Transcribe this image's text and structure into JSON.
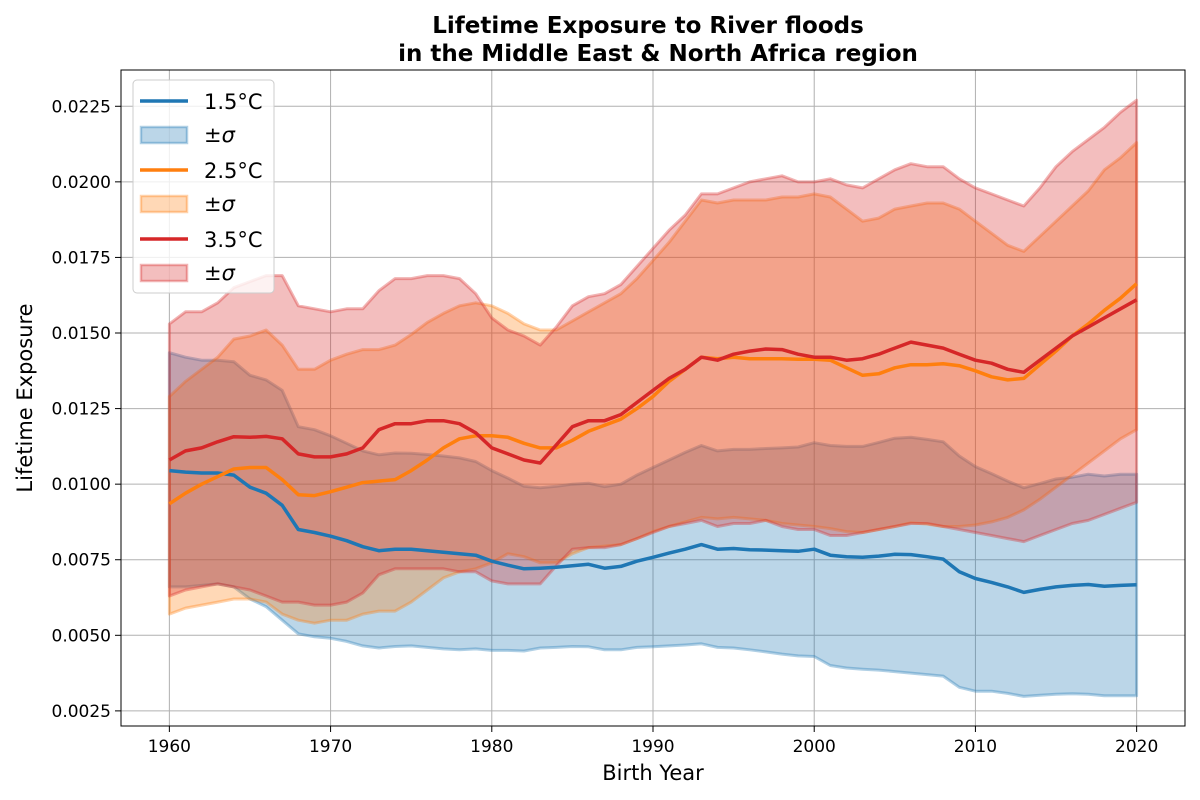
{
  "chart_data": {
    "type": "line",
    "title": "Lifetime Exposure to River floods",
    "subtitle": "in the Middle East & North Africa region",
    "xlabel": "Birth Year",
    "ylabel": "Lifetime Exposure",
    "xlim": [
      1957,
      2023
    ],
    "ylim": [
      0.002,
      0.0237
    ],
    "xticks": [
      1960,
      1970,
      1980,
      1990,
      2000,
      2010,
      2020
    ],
    "xtick_labels": [
      "1960",
      "1970",
      "1980",
      "1990",
      "2000",
      "2010",
      "2020"
    ],
    "yticks": [
      0.0025,
      0.005,
      0.0075,
      0.01,
      0.0125,
      0.015,
      0.0175,
      0.02,
      0.0225
    ],
    "ytick_labels": [
      "0.0025",
      "0.0050",
      "0.0075",
      "0.0100",
      "0.0125",
      "0.0150",
      "0.0175",
      "0.0200",
      "0.0225"
    ],
    "grid": true,
    "legend_position": "top-left",
    "x": [
      1960,
      1961,
      1962,
      1963,
      1964,
      1965,
      1966,
      1967,
      1968,
      1969,
      1970,
      1971,
      1972,
      1973,
      1974,
      1975,
      1976,
      1977,
      1978,
      1979,
      1980,
      1981,
      1982,
      1983,
      1984,
      1985,
      1986,
      1987,
      1988,
      1989,
      1990,
      1991,
      1992,
      1993,
      1994,
      1995,
      1996,
      1997,
      1998,
      1999,
      2000,
      2001,
      2002,
      2003,
      2004,
      2005,
      2006,
      2007,
      2008,
      2009,
      2010,
      2011,
      2012,
      2013,
      2014,
      2015,
      2016,
      2017,
      2018,
      2019,
      2020
    ],
    "series": [
      {
        "name": "1.5°C",
        "band_label": "±σ",
        "color": "#1f77b4",
        "mean": [
          0.01045,
          0.0104,
          0.01037,
          0.01037,
          0.0103,
          0.0099,
          0.0097,
          0.0093,
          0.0085,
          0.0084,
          0.00828,
          0.00813,
          0.00793,
          0.0078,
          0.00785,
          0.00785,
          0.0078,
          0.00775,
          0.0077,
          0.00765,
          0.00745,
          0.00732,
          0.0072,
          0.00722,
          0.00725,
          0.0073,
          0.00735,
          0.00722,
          0.00728,
          0.00745,
          0.00758,
          0.00772,
          0.00785,
          0.008,
          0.00785,
          0.00787,
          0.00783,
          0.00782,
          0.0078,
          0.00778,
          0.00785,
          0.00765,
          0.0076,
          0.00758,
          0.00762,
          0.00768,
          0.00767,
          0.0076,
          0.00752,
          0.0071,
          0.00688,
          0.00675,
          0.0066,
          0.00642,
          0.00652,
          0.0066,
          0.00665,
          0.00668,
          0.00662,
          0.00665,
          0.00667
        ],
        "lower": [
          0.0066,
          0.0066,
          0.00665,
          0.0067,
          0.0066,
          0.0062,
          0.00595,
          0.0055,
          0.00505,
          0.00495,
          0.0049,
          0.0048,
          0.00465,
          0.00458,
          0.00463,
          0.00465,
          0.0046,
          0.00455,
          0.00452,
          0.00455,
          0.0045,
          0.0045,
          0.00448,
          0.00458,
          0.0046,
          0.00463,
          0.00462,
          0.00452,
          0.00452,
          0.0046,
          0.00462,
          0.00465,
          0.00468,
          0.00472,
          0.0046,
          0.00458,
          0.00452,
          0.00445,
          0.00438,
          0.00432,
          0.0043,
          0.004,
          0.00392,
          0.00388,
          0.00385,
          0.0038,
          0.00375,
          0.0037,
          0.00365,
          0.00328,
          0.00315,
          0.00315,
          0.00308,
          0.00298,
          0.00302,
          0.00305,
          0.00307,
          0.00305,
          0.003,
          0.003,
          0.003
        ],
        "upper": [
          0.01435,
          0.0142,
          0.0141,
          0.0141,
          0.01405,
          0.0136,
          0.01345,
          0.0131,
          0.0119,
          0.0118,
          0.0116,
          0.01135,
          0.0111,
          0.01097,
          0.01103,
          0.01102,
          0.01098,
          0.01093,
          0.01087,
          0.01075,
          0.01045,
          0.0102,
          0.00993,
          0.00988,
          0.00993,
          0.01,
          0.01003,
          0.00992,
          0.01,
          0.0103,
          0.01055,
          0.0108,
          0.01105,
          0.01128,
          0.0111,
          0.01115,
          0.01115,
          0.01118,
          0.0112,
          0.01123,
          0.01137,
          0.01128,
          0.01125,
          0.01125,
          0.01138,
          0.01152,
          0.01155,
          0.01148,
          0.0114,
          0.01093,
          0.01058,
          0.01035,
          0.0101,
          0.00988,
          0.01002,
          0.01017,
          0.01023,
          0.01033,
          0.01027,
          0.01033,
          0.01033
        ]
      },
      {
        "name": "2.5°C",
        "band_label": "±σ",
        "color": "#ff7f0e",
        "mean": [
          0.00935,
          0.0097,
          0.01,
          0.01025,
          0.0105,
          0.01055,
          0.01055,
          0.01015,
          0.00965,
          0.00962,
          0.00975,
          0.0099,
          0.01005,
          0.0101,
          0.01015,
          0.01045,
          0.0108,
          0.0112,
          0.0115,
          0.0116,
          0.0116,
          0.01155,
          0.01135,
          0.0112,
          0.0112,
          0.01145,
          0.01175,
          0.01195,
          0.01215,
          0.0125,
          0.0129,
          0.0134,
          0.0138,
          0.0142,
          0.01415,
          0.0142,
          0.01415,
          0.01415,
          0.01415,
          0.01413,
          0.01413,
          0.0141,
          0.01385,
          0.0136,
          0.01365,
          0.01385,
          0.01395,
          0.01395,
          0.01398,
          0.01392,
          0.01375,
          0.01355,
          0.01345,
          0.0135,
          0.01395,
          0.0144,
          0.0149,
          0.0153,
          0.01575,
          0.01615,
          0.01663
        ],
        "lower": [
          0.0057,
          0.0059,
          0.006,
          0.0061,
          0.0062,
          0.0062,
          0.0061,
          0.0057,
          0.0055,
          0.0054,
          0.0055,
          0.0055,
          0.0057,
          0.0058,
          0.0058,
          0.0061,
          0.0065,
          0.0069,
          0.0071,
          0.0072,
          0.0074,
          0.0077,
          0.0076,
          0.0074,
          0.0074,
          0.0077,
          0.0079,
          0.00795,
          0.008,
          0.0082,
          0.00843,
          0.0086,
          0.00875,
          0.0089,
          0.00885,
          0.0089,
          0.00885,
          0.0088,
          0.0087,
          0.00865,
          0.0086,
          0.00853,
          0.00843,
          0.0084,
          0.0085,
          0.0086,
          0.00872,
          0.00868,
          0.0086,
          0.0086,
          0.00865,
          0.00875,
          0.0089,
          0.00915,
          0.0095,
          0.0099,
          0.0103,
          0.0107,
          0.0111,
          0.0115,
          0.0118
        ],
        "upper": [
          0.0129,
          0.0134,
          0.0138,
          0.0142,
          0.0148,
          0.0149,
          0.0151,
          0.0146,
          0.0138,
          0.0138,
          0.0141,
          0.0143,
          0.01445,
          0.01445,
          0.0146,
          0.01495,
          0.01535,
          0.01565,
          0.0159,
          0.016,
          0.0159,
          0.01565,
          0.0153,
          0.0151,
          0.0151,
          0.0154,
          0.0157,
          0.016,
          0.0163,
          0.0168,
          0.0174,
          0.018,
          0.0187,
          0.0194,
          0.0193,
          0.0194,
          0.0194,
          0.0194,
          0.0195,
          0.0195,
          0.0196,
          0.0195,
          0.0191,
          0.0187,
          0.0188,
          0.0191,
          0.0192,
          0.0193,
          0.0193,
          0.0191,
          0.0187,
          0.0183,
          0.0179,
          0.0177,
          0.0182,
          0.0187,
          0.0192,
          0.0197,
          0.0204,
          0.0208,
          0.0213
        ]
      },
      {
        "name": "3.5°C",
        "band_label": "±σ",
        "color": "#d62728",
        "mean": [
          0.0108,
          0.0111,
          0.0112,
          0.0114,
          0.01157,
          0.01155,
          0.01158,
          0.0115,
          0.011,
          0.0109,
          0.0109,
          0.011,
          0.0112,
          0.0118,
          0.012,
          0.012,
          0.0121,
          0.0121,
          0.012,
          0.0117,
          0.0112,
          0.011,
          0.0108,
          0.0107,
          0.0113,
          0.0119,
          0.0121,
          0.0121,
          0.0123,
          0.0127,
          0.0131,
          0.0135,
          0.0138,
          0.0142,
          0.0141,
          0.0143,
          0.0144,
          0.01447,
          0.01445,
          0.0143,
          0.0142,
          0.0142,
          0.0141,
          0.01415,
          0.0143,
          0.0145,
          0.0147,
          0.0146,
          0.0145,
          0.0143,
          0.0141,
          0.014,
          0.0138,
          0.0137,
          0.0141,
          0.0145,
          0.0149,
          0.0152,
          0.0155,
          0.0158,
          0.0161
        ],
        "lower": [
          0.0063,
          0.0065,
          0.0066,
          0.0067,
          0.0066,
          0.0065,
          0.0063,
          0.0061,
          0.0061,
          0.006,
          0.006,
          0.0061,
          0.0064,
          0.007,
          0.0072,
          0.0072,
          0.0072,
          0.0072,
          0.0071,
          0.0071,
          0.0068,
          0.0067,
          0.0067,
          0.0067,
          0.0073,
          0.00785,
          0.0079,
          0.0079,
          0.008,
          0.0082,
          0.0084,
          0.0086,
          0.0087,
          0.0088,
          0.0086,
          0.0087,
          0.0087,
          0.0088,
          0.0086,
          0.0085,
          0.0085,
          0.0083,
          0.0083,
          0.0084,
          0.0085,
          0.0086,
          0.0087,
          0.0087,
          0.0086,
          0.0085,
          0.0084,
          0.0083,
          0.0082,
          0.0081,
          0.0083,
          0.0085,
          0.0087,
          0.0088,
          0.009,
          0.0092,
          0.0094
        ],
        "upper": [
          0.0153,
          0.0157,
          0.0157,
          0.016,
          0.0165,
          0.0167,
          0.0169,
          0.0169,
          0.0159,
          0.0158,
          0.0157,
          0.0158,
          0.0158,
          0.0164,
          0.0168,
          0.0168,
          0.0169,
          0.0169,
          0.0168,
          0.0163,
          0.0155,
          0.0151,
          0.0149,
          0.0146,
          0.0152,
          0.0159,
          0.0162,
          0.0163,
          0.0166,
          0.0172,
          0.0178,
          0.0184,
          0.0189,
          0.0196,
          0.0196,
          0.0198,
          0.02,
          0.0201,
          0.0202,
          0.02,
          0.02,
          0.0201,
          0.0199,
          0.0198,
          0.0201,
          0.0204,
          0.0206,
          0.0205,
          0.0205,
          0.0201,
          0.0198,
          0.0196,
          0.0194,
          0.0192,
          0.0198,
          0.0205,
          0.021,
          0.0214,
          0.0218,
          0.0223,
          0.0227
        ]
      }
    ]
  }
}
